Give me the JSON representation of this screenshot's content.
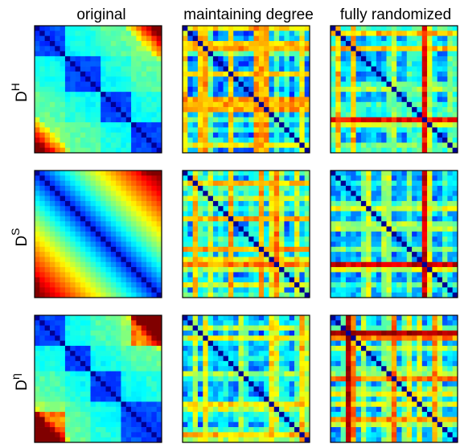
{
  "chart_data": {
    "type": "heatmap",
    "colormap": "jet",
    "column_titles": [
      "original",
      "maintaining degree",
      "fully randomized"
    ],
    "row_labels": [
      {
        "base": "D",
        "sup": "H"
      },
      {
        "base": "D",
        "sup": "S"
      },
      {
        "base": "D",
        "sup": "η"
      }
    ],
    "grid_size": 25,
    "panels": [
      {
        "row": 0,
        "col": 0,
        "pattern": "original-hierarchical",
        "seed": 11,
        "block_bounds": [
          0,
          6,
          13,
          19,
          25
        ],
        "value_range": [
          0,
          1
        ]
      },
      {
        "row": 0,
        "col": 1,
        "pattern": "random-degree-preserving",
        "seed": 12,
        "value_range": [
          0,
          1
        ]
      },
      {
        "row": 0,
        "col": 2,
        "pattern": "fully-random",
        "seed": 13,
        "value_range": [
          0,
          1
        ]
      },
      {
        "row": 1,
        "col": 0,
        "pattern": "original-smooth",
        "seed": 21,
        "value_range": [
          0,
          1
        ]
      },
      {
        "row": 1,
        "col": 1,
        "pattern": "random-degree-preserving",
        "seed": 22,
        "value_range": [
          0,
          1
        ]
      },
      {
        "row": 1,
        "col": 2,
        "pattern": "fully-random",
        "seed": 23,
        "value_range": [
          0,
          1
        ]
      },
      {
        "row": 2,
        "col": 0,
        "pattern": "original-blocks",
        "seed": 31,
        "block_bounds": [
          0,
          6,
          11,
          17,
          25
        ],
        "value_range": [
          0,
          1
        ]
      },
      {
        "row": 2,
        "col": 1,
        "pattern": "random-degree-preserving",
        "seed": 32,
        "value_range": [
          0,
          1
        ]
      },
      {
        "row": 2,
        "col": 2,
        "pattern": "fully-random-outlier",
        "seed": 33,
        "value_range": [
          0,
          1
        ]
      }
    ]
  }
}
